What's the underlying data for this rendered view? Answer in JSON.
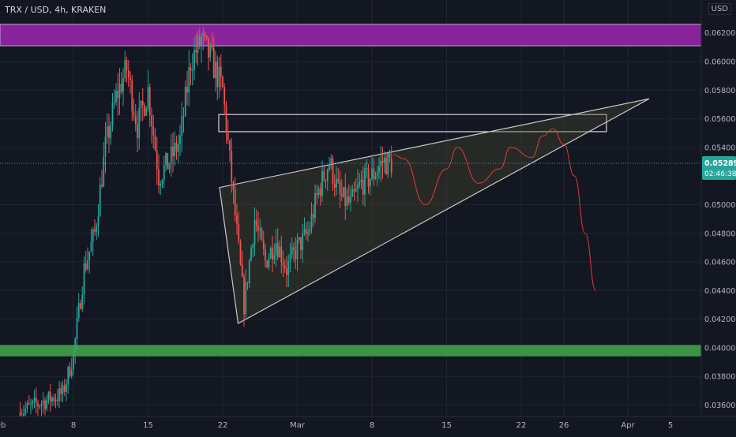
{
  "header": {
    "symbol_title": "TRX / USD, 4h, KRAKEN",
    "currency": "USD"
  },
  "price_badge": {
    "price": "0.052892",
    "countdown": "02:46:38",
    "color": "#26a69a"
  },
  "colors": {
    "background": "#131722",
    "grid": "#1f2433",
    "up": "#26a69a",
    "down": "#ef5350",
    "resistance_zone": "#9c27b0",
    "support_zone": "#43a047",
    "wedge_fill": "#4a4a2a",
    "wedge_line": "#c8c8c8",
    "projection": "#e53935",
    "box_outline": "#ffffff"
  },
  "chart_data": {
    "type": "candlestick",
    "symbol": "TRX / USD",
    "interval": "4h",
    "exchange": "KRAKEN",
    "ylim": [
      0.0352,
      0.0643
    ],
    "yticks": [
      {
        "value": 0.036,
        "label": "0.036000"
      },
      {
        "value": 0.038,
        "label": "0.038000"
      },
      {
        "value": 0.04,
        "label": "0.040000"
      },
      {
        "value": 0.042,
        "label": "0.042000"
      },
      {
        "value": 0.044,
        "label": "0.044000"
      },
      {
        "value": 0.046,
        "label": "0.046000"
      },
      {
        "value": 0.048,
        "label": "0.048000"
      },
      {
        "value": 0.05,
        "label": "0.050000"
      },
      {
        "value": 0.054,
        "label": "0.054000"
      },
      {
        "value": 0.056,
        "label": "0.056000"
      },
      {
        "value": 0.058,
        "label": "0.058000"
      },
      {
        "value": 0.06,
        "label": "0.060000"
      },
      {
        "value": 0.062,
        "label": "0.062000"
      }
    ],
    "xticks": [
      {
        "label": "Feb",
        "date": "2021-02-01"
      },
      {
        "label": "8",
        "date": "2021-02-08"
      },
      {
        "label": "15",
        "date": "2021-02-15"
      },
      {
        "label": "22",
        "date": "2021-02-22"
      },
      {
        "label": "Mar",
        "date": "2021-03-01"
      },
      {
        "label": "8",
        "date": "2021-03-08"
      },
      {
        "label": "15",
        "date": "2021-03-15"
      },
      {
        "label": "22",
        "date": "2021-03-22"
      },
      {
        "label": "26",
        "date": "2021-03-26"
      },
      {
        "label": "Apr",
        "date": "2021-04-01"
      },
      {
        "label": "5",
        "date": "2021-04-05"
      }
    ],
    "last_price": 0.052892,
    "candles_path_close": [
      [
        "2021-02-03",
        0.0355
      ],
      [
        "2021-02-05",
        0.0362
      ],
      [
        "2021-02-07",
        0.0368
      ],
      [
        "2021-02-08",
        0.0395
      ],
      [
        "2021-02-09",
        0.0455
      ],
      [
        "2021-02-10",
        0.048
      ],
      [
        "2021-02-11",
        0.054
      ],
      [
        "2021-02-12",
        0.0575
      ],
      [
        "2021-02-13",
        0.0595
      ],
      [
        "2021-02-14",
        0.0555
      ],
      [
        "2021-02-15",
        0.058
      ],
      [
        "2021-02-16",
        0.052
      ],
      [
        "2021-02-17",
        0.053
      ],
      [
        "2021-02-18",
        0.0545
      ],
      [
        "2021-02-19",
        0.06
      ],
      [
        "2021-02-20",
        0.0615
      ],
      [
        "2021-02-21",
        0.06
      ],
      [
        "2021-02-22",
        0.058
      ],
      [
        "2021-02-23",
        0.0505
      ],
      [
        "2021-02-24",
        0.043
      ],
      [
        "2021-02-25",
        0.049
      ],
      [
        "2021-02-26",
        0.046
      ],
      [
        "2021-02-27",
        0.0475
      ],
      [
        "2021-02-28",
        0.0455
      ],
      [
        "2021-03-01",
        0.047
      ],
      [
        "2021-03-02",
        0.048
      ],
      [
        "2021-03-03",
        0.051
      ],
      [
        "2021-03-04",
        0.053
      ],
      [
        "2021-03-05",
        0.0505
      ],
      [
        "2021-03-06",
        0.05
      ],
      [
        "2021-03-07",
        0.0515
      ],
      [
        "2021-03-08",
        0.052
      ],
      [
        "2021-03-09",
        0.053
      ],
      [
        "2021-03-10",
        0.0529
      ]
    ],
    "zones": [
      {
        "name": "resistance",
        "from": 0.0611,
        "to": 0.0626
      },
      {
        "name": "support",
        "from": 0.0394,
        "to": 0.0402
      },
      {
        "name": "target-box",
        "from": 0.0551,
        "to": 0.0563,
        "x_from": "2021-02-22",
        "x_to": "2021-03-30"
      }
    ],
    "wedge": [
      [
        "2021-02-22",
        0.0512
      ],
      [
        "2021-04-03",
        0.0574
      ],
      [
        "2021-02-23",
        0.0417
      ]
    ],
    "projection_path": [
      [
        "2021-03-10",
        0.0535
      ],
      [
        "2021-03-11",
        0.0532
      ],
      [
        "2021-03-13",
        0.05
      ],
      [
        "2021-03-15",
        0.0525
      ],
      [
        "2021-03-16",
        0.054
      ],
      [
        "2021-03-18",
        0.0515
      ],
      [
        "2021-03-20",
        0.0525
      ],
      [
        "2021-03-21",
        0.054
      ],
      [
        "2021-03-23",
        0.0533
      ],
      [
        "2021-03-24",
        0.0548
      ],
      [
        "2021-03-25",
        0.0553
      ],
      [
        "2021-03-26",
        0.0542
      ],
      [
        "2021-03-27",
        0.052
      ],
      [
        "2021-03-28",
        0.048
      ],
      [
        "2021-03-29",
        0.044
      ]
    ]
  }
}
